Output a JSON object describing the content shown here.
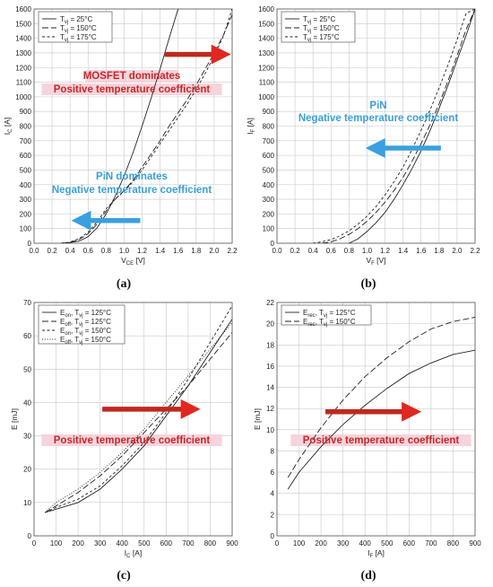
{
  "colors": {
    "red_text": "#c62828",
    "blue_text": "#3aa0d8",
    "red_arrow": "#c0281e",
    "red_arrow_head": "#e02820",
    "blue_arrow": "#3aa0e0",
    "pink_highlight": "#f7d3dc",
    "grid": "#c8c8c8"
  },
  "chart_data": [
    {
      "id": "a",
      "type": "line",
      "panel_label": "(a)",
      "xlabel": "V",
      "xlabel_sub": "CE",
      "xlabel_unit": " [V]",
      "ylabel": "I",
      "ylabel_sub": "C",
      "ylabel_unit": " [A]",
      "xlim": [
        0,
        2.2
      ],
      "ylim": [
        0,
        1600
      ],
      "xticks": [
        0.0,
        0.2,
        0.4,
        0.6,
        0.8,
        1.0,
        1.2,
        1.4,
        1.6,
        1.8,
        2.0,
        2.2
      ],
      "xtick_labels": [
        "0.0",
        "0.2",
        "0.4",
        "0.6",
        "0.8",
        "1.0",
        "1.2",
        "1.4",
        "1.6",
        "1.8",
        "2.0",
        "2.2"
      ],
      "yticks": [
        0,
        100,
        200,
        300,
        400,
        500,
        600,
        700,
        800,
        900,
        1000,
        1100,
        1200,
        1300,
        1400,
        1500,
        1600
      ],
      "ytick_labels": [
        "0",
        "100",
        "200",
        "300",
        "400",
        "500",
        "600",
        "700",
        "800",
        "900",
        "1000",
        "1100",
        "1200",
        "1300",
        "1400",
        "1500",
        "1600"
      ],
      "legend": {
        "position": "top-left"
      },
      "series": [
        {
          "name": "T",
          "name_sub": "vj",
          "name_rest": " = 25°C",
          "dash": "solid",
          "x": [
            0.35,
            0.5,
            0.6,
            0.7,
            0.8,
            0.9,
            1.0,
            1.1,
            1.2,
            1.3,
            1.4,
            1.5,
            1.6
          ],
          "y": [
            0,
            15,
            45,
            105,
            200,
            320,
            460,
            620,
            800,
            990,
            1190,
            1400,
            1600
          ]
        },
        {
          "name": "T",
          "name_sub": "vj",
          "name_rest": " = 150°C",
          "dash": "longdash",
          "x": [
            0.3,
            0.4,
            0.5,
            0.6,
            0.7,
            0.8,
            0.9,
            1.0,
            1.1,
            1.2,
            1.3,
            1.4,
            1.5,
            1.6,
            1.7,
            1.8,
            1.9,
            2.0,
            2.1,
            2.2
          ],
          "y": [
            0,
            5,
            25,
            65,
            130,
            220,
            300,
            360,
            430,
            520,
            610,
            700,
            800,
            890,
            980,
            1080,
            1190,
            1300,
            1420,
            1560
          ]
        },
        {
          "name": "T",
          "name_sub": "vj",
          "name_rest": " = 175°C",
          "dash": "shortdash",
          "x": [
            0.3,
            0.4,
            0.5,
            0.6,
            0.7,
            0.8,
            0.9,
            1.0,
            1.1,
            1.2,
            1.3,
            1.4,
            1.5,
            1.6,
            1.7,
            1.8,
            1.9,
            2.0,
            2.1,
            2.2
          ],
          "y": [
            0,
            8,
            32,
            75,
            145,
            235,
            300,
            355,
            420,
            500,
            590,
            680,
            770,
            860,
            950,
            1050,
            1160,
            1280,
            1410,
            1600
          ]
        }
      ],
      "annotations": [
        {
          "lines": [
            "MOSFET dominates",
            "Positive temperature coefficient"
          ],
          "color": "red",
          "highlight": true
        },
        {
          "lines": [
            "PiN dominates",
            "Negative temperature coefficient"
          ],
          "color": "blue",
          "highlight": false
        }
      ],
      "arrows": [
        {
          "color": "red",
          "direction": "right",
          "x_from": 1.45,
          "x_to": 2.05,
          "y": 1290
        },
        {
          "color": "blue",
          "direction": "left",
          "x_from": 1.18,
          "x_to": 0.55,
          "y": 155
        }
      ]
    },
    {
      "id": "b",
      "type": "line",
      "panel_label": "(b)",
      "xlabel": "V",
      "xlabel_sub": "F",
      "xlabel_unit": " [V]",
      "ylabel": "I",
      "ylabel_sub": "F",
      "ylabel_unit": " [A]",
      "xlim": [
        0,
        2.2
      ],
      "ylim": [
        0,
        1600
      ],
      "xticks": [
        0.0,
        0.2,
        0.4,
        0.6,
        0.8,
        1.0,
        1.2,
        1.4,
        1.6,
        1.8,
        2.0,
        2.2
      ],
      "xtick_labels": [
        "0.0",
        "0.2",
        "0.4",
        "0.6",
        "0.8",
        "1.0",
        "1.2",
        "1.4",
        "1.6",
        "1.8",
        "2.0",
        "2.2"
      ],
      "yticks": [
        0,
        100,
        200,
        300,
        400,
        500,
        600,
        700,
        800,
        900,
        1000,
        1100,
        1200,
        1300,
        1400,
        1500,
        1600
      ],
      "ytick_labels": [
        "0",
        "100",
        "200",
        "300",
        "400",
        "500",
        "600",
        "700",
        "800",
        "900",
        "1000",
        "1100",
        "1200",
        "1300",
        "1400",
        "1500",
        "1600"
      ],
      "legend": {
        "position": "top-left"
      },
      "series": [
        {
          "name": "T",
          "name_sub": "vj",
          "name_rest": " = 25°C",
          "dash": "solid",
          "x": [
            0.8,
            0.9,
            1.0,
            1.1,
            1.2,
            1.3,
            1.4,
            1.5,
            1.6,
            1.7,
            1.8,
            1.9,
            2.0,
            2.1,
            2.2
          ],
          "y": [
            0,
            30,
            80,
            140,
            210,
            300,
            400,
            510,
            630,
            770,
            920,
            1080,
            1250,
            1420,
            1600
          ]
        },
        {
          "name": "T",
          "name_sub": "vj",
          "name_rest": " = 150°C",
          "dash": "longdash",
          "x": [
            0.5,
            0.6,
            0.7,
            0.8,
            0.9,
            1.0,
            1.1,
            1.2,
            1.3,
            1.4,
            1.5,
            1.6,
            1.7,
            1.8,
            1.9,
            2.0,
            2.1,
            2.2
          ],
          "y": [
            0,
            10,
            30,
            60,
            100,
            150,
            210,
            280,
            360,
            450,
            560,
            680,
            810,
            950,
            1110,
            1280,
            1460,
            1600
          ]
        },
        {
          "name": "T",
          "name_sub": "vj",
          "name_rest": " = 175°C",
          "dash": "shortdash",
          "x": [
            0.4,
            0.5,
            0.6,
            0.7,
            0.8,
            0.9,
            1.0,
            1.1,
            1.2,
            1.3,
            1.4,
            1.5,
            1.6,
            1.7,
            1.8,
            1.9,
            2.0,
            2.1,
            2.2
          ],
          "y": [
            0,
            10,
            25,
            50,
            85,
            130,
            185,
            250,
            330,
            420,
            520,
            640,
            770,
            910,
            1060,
            1220,
            1390,
            1570,
            1600
          ]
        }
      ],
      "annotations": [
        {
          "lines": [
            "PiN",
            "Negative temperature coefficient"
          ],
          "color": "blue",
          "highlight": false
        }
      ],
      "arrows": [
        {
          "color": "blue",
          "direction": "left",
          "x_from": 1.82,
          "x_to": 1.12,
          "y": 650
        }
      ]
    },
    {
      "id": "c",
      "type": "line",
      "panel_label": "(c)",
      "xlabel": "I",
      "xlabel_sub": "C",
      "xlabel_unit": " [A]",
      "ylabel": "E [mJ]",
      "ylabel_sub": "",
      "ylabel_unit": "",
      "xlim": [
        0,
        900
      ],
      "ylim": [
        0,
        70
      ],
      "xticks": [
        0,
        100,
        200,
        300,
        400,
        500,
        600,
        700,
        800,
        900
      ],
      "xtick_labels": [
        "0",
        "100",
        "200",
        "300",
        "400",
        "500",
        "600",
        "700",
        "800",
        "900"
      ],
      "yticks": [
        0,
        10,
        20,
        30,
        40,
        50,
        60,
        70
      ],
      "ytick_labels": [
        "0",
        "10",
        "20",
        "30",
        "40",
        "50",
        "60",
        "70"
      ],
      "legend": {
        "position": "top-left"
      },
      "series": [
        {
          "name": "E",
          "name_sub": "on",
          "name_rest": ", T",
          "name_sub2": "vj",
          "name_rest2": " = 125°C",
          "dash": "solid",
          "x": [
            50,
            100,
            200,
            300,
            400,
            500,
            600,
            700,
            800,
            900
          ],
          "y": [
            7,
            8,
            10,
            14,
            20,
            27,
            36,
            45,
            55,
            65
          ]
        },
        {
          "name": "E",
          "name_sub": "off",
          "name_rest": ", T",
          "name_sub2": "vj",
          "name_rest2": " = 125°C",
          "dash": "longdash",
          "x": [
            50,
            100,
            200,
            300,
            400,
            500,
            600,
            700,
            800,
            900
          ],
          "y": [
            7,
            9,
            13,
            18,
            24,
            31,
            38,
            45,
            53,
            61
          ]
        },
        {
          "name": "E",
          "name_sub": "on",
          "name_rest": ", T",
          "name_sub2": "vj",
          "name_rest2": " = 150°C",
          "dash": "shortdash",
          "x": [
            50,
            100,
            200,
            300,
            400,
            500,
            600,
            700,
            800,
            900
          ],
          "y": [
            7,
            8.5,
            11,
            15,
            21,
            28,
            37,
            47,
            58,
            69
          ]
        },
        {
          "name": "E",
          "name_sub": "off",
          "name_rest": ", T",
          "name_sub2": "vj",
          "name_rest2": " = 150°C",
          "dash": "dotted",
          "x": [
            50,
            100,
            200,
            300,
            400,
            500,
            600,
            700,
            800,
            900
          ],
          "y": [
            7,
            10,
            14,
            19,
            25,
            32,
            40,
            48,
            56,
            64
          ]
        }
      ],
      "annotations": [
        {
          "lines": [
            "Positive temperature coefficient"
          ],
          "color": "red",
          "highlight": true
        }
      ],
      "arrows": [
        {
          "color": "red",
          "direction": "right",
          "x_from": 310,
          "x_to": 700,
          "y": 38
        }
      ]
    },
    {
      "id": "d",
      "type": "line",
      "panel_label": "(d)",
      "xlabel": "I",
      "xlabel_sub": "F",
      "xlabel_unit": " [A]",
      "ylabel": "E [mJ]",
      "ylabel_sub": "",
      "ylabel_unit": "",
      "xlim": [
        0,
        900
      ],
      "ylim": [
        0,
        22
      ],
      "xticks": [
        0,
        100,
        200,
        300,
        400,
        500,
        600,
        700,
        800,
        900
      ],
      "xtick_labels": [
        "0",
        "100",
        "200",
        "300",
        "400",
        "500",
        "600",
        "700",
        "800",
        "900"
      ],
      "yticks": [
        0,
        2,
        4,
        6,
        8,
        10,
        12,
        14,
        16,
        18,
        20,
        22
      ],
      "ytick_labels": [
        "0",
        "2",
        "4",
        "6",
        "8",
        "10",
        "12",
        "14",
        "16",
        "18",
        "20",
        "22"
      ],
      "legend": {
        "position": "top-left"
      },
      "series": [
        {
          "name": "E",
          "name_sub": "rec",
          "name_rest": ", T",
          "name_sub2": "vj",
          "name_rest2": " = 125°C",
          "dash": "solid",
          "x": [
            50,
            100,
            200,
            300,
            400,
            500,
            600,
            700,
            800,
            900
          ],
          "y": [
            4.4,
            6,
            8.4,
            10.5,
            12.3,
            13.9,
            15.3,
            16.3,
            17.1,
            17.5
          ]
        },
        {
          "name": "E",
          "name_sub": "rec",
          "name_rest": ", T",
          "name_sub2": "vj",
          "name_rest2": " = 150°C",
          "dash": "longdash",
          "x": [
            50,
            100,
            200,
            300,
            400,
            500,
            600,
            700,
            800,
            900
          ],
          "y": [
            5.5,
            7.2,
            10.2,
            12.8,
            15,
            16.8,
            18.3,
            19.5,
            20.2,
            20.6
          ]
        }
      ],
      "annotations": [
        {
          "lines": [
            "Positive temperature coefficient"
          ],
          "color": "red",
          "highlight": true
        }
      ],
      "arrows": [
        {
          "color": "red",
          "direction": "right",
          "x_from": 220,
          "x_to": 600,
          "y": 11.7
        }
      ]
    }
  ]
}
